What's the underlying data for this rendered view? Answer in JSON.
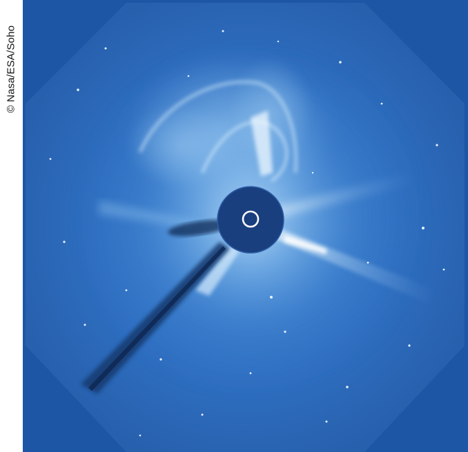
{
  "credit": {
    "text": "© Nasa/ESA/Soho"
  },
  "image": {
    "subject": "coronagraph-solar-corona",
    "colors": {
      "frame": "#1d56a5",
      "field": "#2f6fc1",
      "occulter": "#1a3f7e",
      "glow": "#dff2ff",
      "sun_ring": "#ffffff"
    }
  }
}
